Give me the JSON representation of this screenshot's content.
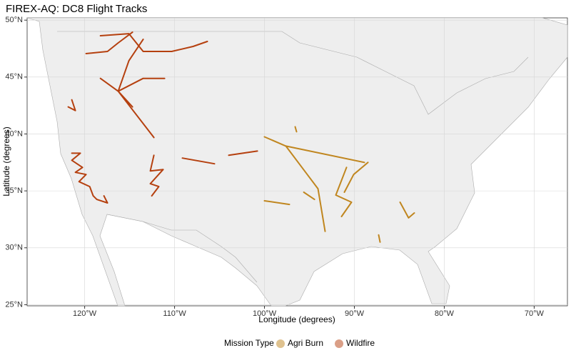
{
  "chart_data": {
    "type": "map",
    "title": "FIREX-AQ: DC8 Flight Tracks",
    "x_label": "Longitude (degrees)",
    "y_label": "Latitude (degrees)",
    "legend_title": "Mission Type",
    "legend_position": "bottom",
    "grid": true,
    "xlim": [
      -126.4,
      -66.3
    ],
    "ylim": [
      24.9,
      50.2
    ],
    "xticks": [
      {
        "value": -120,
        "label": "120°W"
      },
      {
        "value": -110,
        "label": "110°W"
      },
      {
        "value": -100,
        "label": "100°W"
      },
      {
        "value": -90,
        "label": "90°W"
      },
      {
        "value": -80,
        "label": "80°W"
      },
      {
        "value": -70,
        "label": "70°W"
      }
    ],
    "yticks": [
      {
        "value": 25,
        "label": "25°N"
      },
      {
        "value": 30,
        "label": "30°N"
      },
      {
        "value": 35,
        "label": "35°N"
      },
      {
        "value": 40,
        "label": "40°N"
      },
      {
        "value": 45,
        "label": "45°N"
      },
      {
        "value": 50,
        "label": "50°N"
      }
    ],
    "series": [
      {
        "name": "Agri Burn",
        "color": "#c0861f",
        "x": [
          -100.0,
          -97.62,
          -88.89,
          null,
          -97.62,
          -95.24,
          -94.05,
          -93.25,
          null,
          -90.87,
          -92.06,
          -90.32,
          -91.43,
          null,
          -88.49,
          -90.08,
          -91.11,
          null,
          -84.92,
          -83.97,
          -83.33,
          null,
          -96.59,
          -96.43,
          null,
          -95.63,
          -94.44,
          null,
          -100.0,
          -97.22,
          null,
          -87.3,
          -87.14
        ],
        "y": [
          39.75,
          38.94,
          37.5,
          null,
          38.94,
          36.44,
          35.19,
          31.44,
          null,
          37.06,
          34.63,
          34.0,
          32.75,
          null,
          37.5,
          36.44,
          34.88,
          null,
          34.0,
          32.63,
          33.06,
          null,
          40.63,
          40.19,
          null,
          34.88,
          34.25,
          null,
          34.13,
          33.81,
          null,
          31.13,
          30.5
        ]
      },
      {
        "name": "Wildfire",
        "color": "#b5400f",
        "x": [
          -121.43,
          -120.48,
          -121.43,
          -120.24,
          -121.03,
          -119.84,
          -120.63,
          -119.44,
          -119.05,
          -118.65,
          -117.46,
          -117.86,
          null,
          -118.25,
          -115.08,
          -113.49,
          -110.32,
          -107.94,
          -106.35,
          null,
          -119.84,
          -117.46,
          -116.27,
          -114.68,
          null,
          -116.27,
          -112.3,
          null,
          -116.27,
          -113.49,
          -111.11,
          null,
          -116.27,
          -114.68,
          null,
          -116.27,
          -115.08,
          -113.49,
          null,
          -118.25,
          -116.27,
          null,
          -112.3,
          -112.7,
          -111.27,
          -112.7,
          -111.75,
          -112.54,
          null,
          -121.43,
          -121.03,
          -121.83,
          null,
          -109.13,
          -105.56,
          null,
          -103.97,
          -100.79
        ],
        "y": [
          38.31,
          38.31,
          37.69,
          37.06,
          36.63,
          36.44,
          35.81,
          35.38,
          34.56,
          34.25,
          33.94,
          34.56,
          null,
          48.63,
          48.81,
          47.25,
          47.25,
          47.69,
          48.13,
          null,
          47.06,
          47.25,
          48.0,
          48.94,
          null,
          43.75,
          39.69,
          null,
          43.75,
          44.88,
          44.88,
          null,
          43.75,
          42.38,
          null,
          43.75,
          46.44,
          48.31,
          null,
          44.88,
          43.75,
          null,
          38.13,
          36.75,
          36.88,
          35.63,
          35.38,
          34.56,
          null,
          43.0,
          42.06,
          42.38,
          null,
          37.88,
          37.38,
          null,
          38.13,
          38.5
        ]
      }
    ]
  }
}
